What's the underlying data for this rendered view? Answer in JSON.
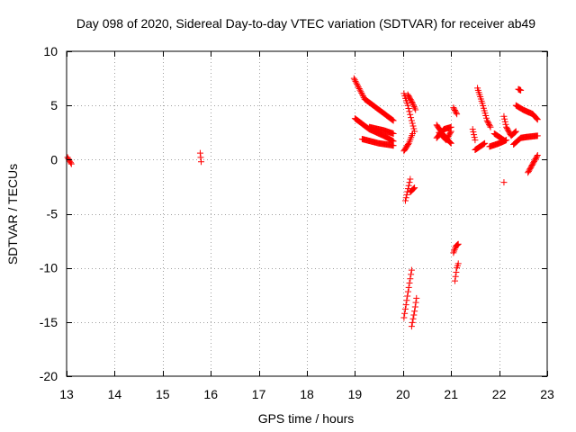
{
  "chart_data": {
    "type": "scatter",
    "title": "Day 098 of 2020, Sidereal Day-to-day VTEC variation (SDTVAR) for receiver ab49",
    "xlabel": "GPS time / hours",
    "ylabel": "SDTVAR / TECUs",
    "xlim": [
      13,
      23
    ],
    "ylim": [
      -20,
      10
    ],
    "xticks": [
      13,
      14,
      15,
      16,
      17,
      18,
      19,
      20,
      21,
      22,
      23
    ],
    "yticks": [
      -20,
      -15,
      -10,
      -5,
      0,
      5,
      10
    ],
    "xtick_labels": [
      "13",
      "14",
      "15",
      "16",
      "17",
      "18",
      "19",
      "20",
      "21",
      "22",
      "23"
    ],
    "ytick_labels": [
      "-20",
      "-15",
      "-10",
      "-5",
      "0",
      "5",
      "10"
    ],
    "grid": true,
    "marker": "+",
    "series": [
      {
        "name": "SDTVAR",
        "color": "#ff0000",
        "tracks": [
          [
            [
              13.02,
              0.2
            ],
            [
              13.1,
              -0.4
            ]
          ],
          [
            [
              15.78,
              0.6
            ],
            [
              15.8,
              -0.2
            ]
          ],
          [
            [
              18.98,
              7.5
            ],
            [
              19.2,
              5.6
            ],
            [
              19.5,
              4.6
            ],
            [
              19.8,
              3.6
            ]
          ],
          [
            [
              19.0,
              3.8
            ],
            [
              19.3,
              2.8
            ],
            [
              19.6,
              2.2
            ],
            [
              19.8,
              1.7
            ]
          ],
          [
            [
              19.15,
              1.9
            ],
            [
              19.5,
              1.5
            ],
            [
              19.8,
              1.3
            ]
          ],
          [
            [
              19.3,
              3.0
            ],
            [
              19.6,
              2.7
            ],
            [
              19.8,
              2.4
            ]
          ],
          [
            [
              20.02,
              6.1
            ],
            [
              20.1,
              5.0
            ],
            [
              20.18,
              3.6
            ],
            [
              20.24,
              2.6
            ]
          ],
          [
            [
              20.1,
              6.0
            ],
            [
              20.2,
              5.2
            ],
            [
              20.26,
              4.6
            ]
          ],
          [
            [
              20.02,
              0.8
            ],
            [
              20.12,
              1.5
            ],
            [
              20.2,
              2.4
            ]
          ],
          [
            [
              20.05,
              -3.8
            ],
            [
              20.12,
              -2.4
            ],
            [
              20.15,
              -1.8
            ]
          ],
          [
            [
              20.15,
              -3.0
            ],
            [
              20.24,
              -2.6
            ]
          ],
          [
            [
              20.02,
              -14.6
            ],
            [
              20.12,
              -11.8
            ],
            [
              20.18,
              -10.2
            ]
          ],
          [
            [
              20.18,
              -15.4
            ],
            [
              20.24,
              -14.0
            ],
            [
              20.28,
              -12.8
            ]
          ],
          [
            [
              20.7,
              3.2
            ],
            [
              20.85,
              2.2
            ],
            [
              21.0,
              1.5
            ]
          ],
          [
            [
              20.7,
              2.0
            ],
            [
              20.85,
              2.8
            ],
            [
              21.0,
              3.0
            ]
          ],
          [
            [
              20.75,
              2.5
            ],
            [
              20.9,
              1.8
            ],
            [
              21.0,
              2.6
            ]
          ],
          [
            [
              21.05,
              4.8
            ],
            [
              21.12,
              4.2
            ]
          ],
          [
            [
              21.08,
              -11.2
            ],
            [
              21.12,
              -10.0
            ],
            [
              21.15,
              -9.6
            ]
          ],
          [
            [
              21.05,
              -8.6
            ],
            [
              21.1,
              -8.0
            ],
            [
              21.15,
              -7.8
            ]
          ],
          [
            [
              21.45,
              2.8
            ],
            [
              21.5,
              1.8
            ]
          ],
          [
            [
              21.55,
              6.6
            ],
            [
              21.65,
              5.2
            ],
            [
              21.75,
              3.6
            ],
            [
              21.82,
              3.0
            ]
          ],
          [
            [
              21.5,
              0.9
            ],
            [
              21.6,
              1.2
            ],
            [
              21.7,
              1.5
            ]
          ],
          [
            [
              21.8,
              1.2
            ],
            [
              22.0,
              1.5
            ],
            [
              22.15,
              1.8
            ]
          ],
          [
            [
              21.9,
              2.4
            ],
            [
              22.1,
              1.8
            ]
          ],
          [
            [
              22.1,
              4.0
            ],
            [
              22.15,
              3.0
            ],
            [
              22.25,
              2.2
            ],
            [
              22.35,
              2.6
            ]
          ],
          [
            [
              22.1,
              -2.1
            ]
          ],
          [
            [
              22.4,
              6.5
            ],
            [
              22.45,
              6.4
            ]
          ],
          [
            [
              22.35,
              5.0
            ],
            [
              22.5,
              4.6
            ],
            [
              22.7,
              4.2
            ],
            [
              22.8,
              3.7
            ]
          ],
          [
            [
              22.3,
              1.4
            ],
            [
              22.45,
              2.0
            ],
            [
              22.6,
              2.1
            ],
            [
              22.8,
              2.2
            ]
          ],
          [
            [
              22.6,
              -1.2
            ],
            [
              22.7,
              -0.4
            ],
            [
              22.8,
              0.4
            ]
          ]
        ]
      }
    ]
  }
}
